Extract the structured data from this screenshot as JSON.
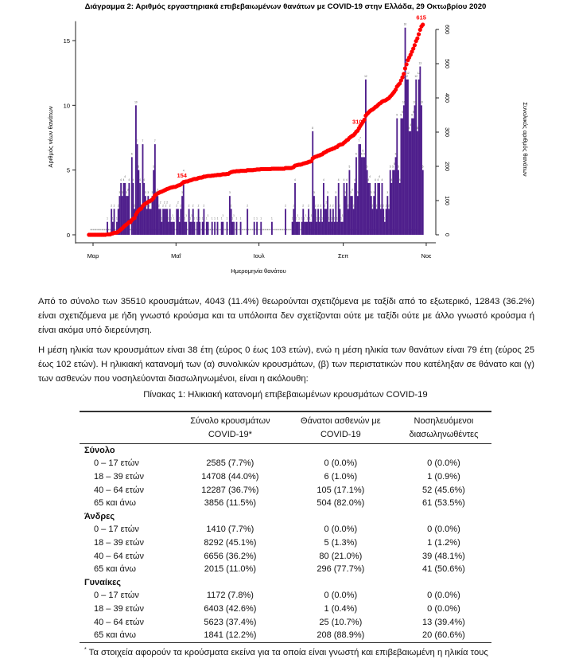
{
  "chart_data": {
    "type": "bar+line",
    "title": "Διάγραμμα 2: Αριθμός εργαστηριακά επιβεβαιωμένων θανάτων με COVID-19 στην Ελλάδα, 29 Οκτωβρίου 2020",
    "xlabel": "Ημερομηνία θανάτου",
    "ylabel": "Αριθμός νέων θανάτων",
    "ylabel_right": "Συνολικός αριθμός θανάτων",
    "x_tick_labels": [
      "Μαρ",
      "Μαΐ",
      "Ιουλ",
      "Σεπ",
      "Νοε"
    ],
    "y_ticks": [
      0,
      5,
      10,
      15
    ],
    "y_right_ticks": [
      0,
      100,
      200,
      300,
      400,
      500,
      600
    ],
    "ylim": [
      0,
      16.5
    ],
    "ylim_right": [
      0,
      600
    ],
    "x_start": "2020-03-11",
    "daily_deaths": [
      1,
      0,
      0,
      2,
      1,
      2,
      0,
      1,
      2,
      3,
      4,
      3,
      4,
      4,
      3,
      3,
      4,
      0,
      6,
      4,
      2,
      10,
      7,
      5,
      4,
      2,
      7,
      4,
      3,
      2,
      3,
      2,
      2,
      3,
      5,
      7,
      3,
      3,
      2,
      2,
      1,
      2,
      2,
      2,
      2,
      1,
      2,
      1,
      1,
      1,
      0,
      2,
      2,
      1,
      2,
      3,
      4,
      1,
      1,
      0,
      2,
      1,
      1,
      2,
      1,
      0,
      1,
      2,
      1,
      0,
      1,
      2,
      0,
      1,
      1,
      0,
      0,
      1,
      0,
      1,
      0,
      1,
      0,
      0,
      1,
      1,
      0,
      0,
      1,
      0,
      3,
      2,
      1,
      1,
      0,
      1,
      0,
      0,
      1,
      0,
      0,
      0,
      0,
      2,
      0,
      0,
      0,
      0,
      1,
      0,
      1,
      0,
      0,
      1,
      0,
      0,
      0,
      0,
      0,
      0,
      0,
      1,
      0,
      0,
      0,
      0,
      0,
      0,
      0,
      0,
      0,
      2,
      0,
      0,
      0,
      0,
      1,
      2,
      4,
      1,
      1,
      1,
      0,
      1,
      2,
      1,
      1,
      1,
      2,
      1,
      1,
      8,
      3,
      2,
      1,
      2,
      1,
      2,
      1,
      4,
      2,
      2,
      3,
      1,
      2,
      1,
      2,
      1,
      3,
      1,
      4,
      2,
      1,
      1,
      4,
      3,
      4,
      2,
      5,
      3,
      3,
      2,
      4,
      6,
      3,
      7,
      7,
      6,
      6,
      6,
      12,
      5,
      4,
      4,
      3,
      2,
      3,
      4,
      2,
      4,
      4,
      2,
      4,
      2,
      1,
      2,
      3,
      2,
      5,
      4,
      5,
      5,
      6,
      9,
      5,
      4,
      9,
      9,
      10,
      16,
      12,
      12,
      8,
      8,
      9,
      9,
      10,
      12,
      8,
      12,
      13,
      10,
      5
    ],
    "cumulative_labels": [
      "154",
      "310",
      "615"
    ],
    "colors": {
      "bars": "#4F1F8C",
      "cumulative": "#FF0000",
      "baseline": "#9a9a9a"
    }
  },
  "text": {
    "paragraph1": "Από το σύνολο των 35510 κρουσμάτων, 4043 (11.4%) θεωρούνται σχετιζόμενα με ταξίδι από το εξωτερικό, 12843 (36.2%) είναι σχετιζόμενα με ήδη γνωστό κρούσμα και τα υπόλοιπα δεν σχετίζονται ούτε με ταξίδι ούτε με άλλο γνωστό κρούσμα ή είναι ακόμα υπό διερεύνηση.",
    "paragraph2": "Η μέση ηλικία των κρουσμάτων είναι 38 έτη (εύρος 0 έως 103 ετών), ενώ η μέση ηλικία των θανάτων είναι 79 έτη (εύρος 25 έως 102 ετών). Η ηλικιακή κατανομή των (α) συνολικών κρουσμάτων, (β) των περιστατικών που κατέληξαν σε θάνατο και (γ) των ασθενών που νοσηλεύονται διασωληνωμένοι, είναι η ακόλουθη:"
  },
  "table": {
    "caption": "Πίνακας 1: Ηλικιακή κατανομή επιβεβαιωμένων κρουσμάτων COVID-19",
    "headers": [
      {
        "l1": "Σύνολο κρουσμάτων",
        "l2": "COVID-19*"
      },
      {
        "l1": "Θάνατοι ασθενών με",
        "l2": "COVID-19"
      },
      {
        "l1": "Νοσηλευόμενοι",
        "l2": "διασωληνωθέντες"
      }
    ],
    "groups": [
      {
        "name": "Σύνολο",
        "rows": [
          [
            "0 – 17 ετών",
            "2585 (7.7%)",
            "0 (0.0%)",
            "0 (0.0%)"
          ],
          [
            "18 – 39 ετών",
            "14708 (44.0%)",
            "6 (1.0%)",
            "1 (0.9%)"
          ],
          [
            "40 – 64 ετών",
            "12287 (36.7%)",
            "105 (17.1%)",
            "52 (45.6%)"
          ],
          [
            "65 και άνω",
            "3856 (11.5%)",
            "504 (82.0%)",
            "61 (53.5%)"
          ]
        ]
      },
      {
        "name": "Άνδρες",
        "rows": [
          [
            "0 – 17 ετών",
            "1410 (7.7%)",
            "0 (0.0%)",
            "0 (0.0%)"
          ],
          [
            "18 – 39 ετών",
            "8292 (45.1%)",
            "5 (1.3%)",
            "1 (1.2%)"
          ],
          [
            "40 – 64 ετών",
            "6656 (36.2%)",
            "80 (21.0%)",
            "39 (48.1%)"
          ],
          [
            "65 και άνω",
            "2015 (11.0%)",
            "296 (77.7%)",
            "41 (50.6%)"
          ]
        ]
      },
      {
        "name": "Γυναίκες",
        "rows": [
          [
            "0 – 17 ετών",
            "1172 (7.8%)",
            "0 (0.0%)",
            "0 (0.0%)"
          ],
          [
            "18 – 39 ετών",
            "6403 (42.6%)",
            "1 (0.4%)",
            "0 (0.0%)"
          ],
          [
            "40 – 64 ετών",
            "5623 (37.4%)",
            "25 (10.7%)",
            "13 (39.4%)"
          ],
          [
            "65 και άνω",
            "1841 (12.2%)",
            "208 (88.9%)",
            "20 (60.6%)"
          ]
        ]
      }
    ],
    "footnote_mark": "*",
    "footnote": "Τα στοιχεία αφορούν τα κρούσματα εκείνα για τα οποία είναι γνωστή και επιβεβαιωμένη η ηλικία τους"
  }
}
